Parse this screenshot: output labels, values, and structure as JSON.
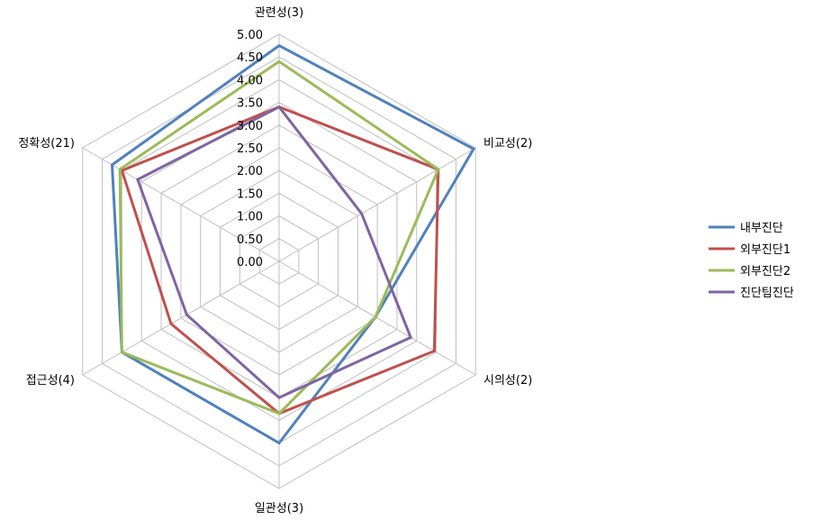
{
  "chart_data": {
    "type": "radar",
    "axes": [
      "관련성(3)",
      "비교성(2)",
      "시의성(2)",
      "일관성(3)",
      "접근성(4)",
      "정확성(21)"
    ],
    "range": [
      0,
      5
    ],
    "ticks": [
      "0.00",
      "0.50",
      "1.00",
      "1.50",
      "2.00",
      "2.50",
      "3.00",
      "3.50",
      "4.00",
      "4.50",
      "5.00"
    ],
    "legend_position": "right",
    "series": [
      {
        "name": "내부진단",
        "color": "#4f81bd",
        "values": [
          4.75,
          4.95,
          2.45,
          4.0,
          4.0,
          4.25
        ]
      },
      {
        "name": "외부진단1",
        "color": "#c0504d",
        "values": [
          3.4,
          4.05,
          3.95,
          3.35,
          2.75,
          4.0
        ]
      },
      {
        "name": "외부진단2",
        "color": "#9bbb59",
        "values": [
          4.4,
          4.05,
          2.45,
          3.35,
          4.0,
          4.05
        ]
      },
      {
        "name": "진단팀진단",
        "color": "#8064a2",
        "values": [
          3.4,
          2.1,
          3.35,
          3.0,
          2.35,
          3.6
        ]
      }
    ],
    "grid": true,
    "grid_color": "#bfbfbf"
  }
}
